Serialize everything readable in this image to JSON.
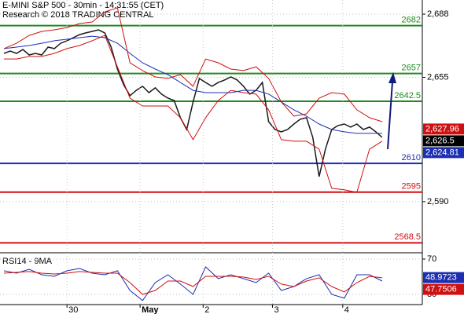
{
  "chart_data": [
    {
      "type": "line",
      "title": "E-MINI S&P 500 - 30min - 14:31:55 (CET)",
      "subtitle": "Research © 2018 TRADING CENTRAL",
      "xlim": [
        -0.625,
        66.375
      ],
      "ylim": [
        2563.3,
        2695.4
      ],
      "yticks": [
        {
          "value": 2688,
          "label": "2,688"
        },
        {
          "value": 2655,
          "label": "2,655"
        },
        {
          "value": 2590,
          "label": "2,590"
        }
      ],
      "grid": true,
      "series": [
        {
          "color": "#1a1a1a",
          "step": 1,
          "values": [
            2667.5,
            2668.7,
            2667.5,
            2669.5,
            2666.7,
            2667.5,
            2666.7,
            2670.8,
            2670,
            2672.8,
            2674.1,
            2675.7,
            2677.3,
            2678.2,
            2679,
            2679.8,
            2678.2,
            2670.8,
            2659.3,
            2651.1,
            2645.4,
            2648.2,
            2650.3,
            2647,
            2649.5,
            2646.2,
            2644.1,
            2642.9,
            2633.9,
            2627.7,
            2642.1,
            2654.4,
            2652.3,
            2650.3,
            2652.3,
            2653.6,
            2655.2,
            2653.6,
            2650.3,
            2646.2,
            2648.2,
            2652.3,
            2631.8,
            2627.7,
            2626.5,
            2627.7,
            2630.6,
            2633.1,
            2633.9,
            2623.6,
            2603.1,
            2617.5,
            2627.7,
            2629.8,
            2630.6,
            2629,
            2630.6,
            2627.7,
            2629,
            2626.5,
            2623.6
          ]
        },
        {
          "color": "#1c2fb0",
          "step": 2,
          "values": [
            2670,
            2670.8,
            2671.6,
            2672.8,
            2674.1,
            2674.9,
            2675.7,
            2676.5,
            2675.7,
            2672.8,
            2667.5,
            2662.6,
            2659.3,
            2656.4,
            2652.3,
            2648.2,
            2647,
            2647,
            2647,
            2648.2,
            2648.2,
            2646.2,
            2642.1,
            2638,
            2634.7,
            2630.6,
            2627.7,
            2626.5,
            2625.7,
            2625.7,
            2625.7
          ]
        },
        {
          "color": "#d01010",
          "step": 2,
          "values": [
            2670,
            2672.8,
            2676.9,
            2679,
            2679.8,
            2681,
            2683.1,
            2683.9,
            2689.2,
            2691.3,
            2662.6,
            2658.5,
            2655.2,
            2654.4,
            2656.4,
            2650.3,
            2664.6,
            2662.6,
            2659.3,
            2658.5,
            2660.5,
            2654.4,
            2642.1,
            2634.7,
            2635.9,
            2644.1,
            2647,
            2646.2,
            2638,
            2633.9,
            2631.8
          ]
        },
        {
          "color": "#d01010",
          "step": 2,
          "values": [
            2664.6,
            2664.6,
            2665.9,
            2665.9,
            2667.5,
            2670,
            2671.6,
            2674.1,
            2676.9,
            2660.5,
            2644.1,
            2640,
            2640,
            2640,
            2633.9,
            2622.4,
            2633.9,
            2642.9,
            2648.2,
            2647,
            2646.2,
            2638,
            2622.4,
            2621.6,
            2621.6,
            2617.5,
            2597,
            2596.2,
            2594.9,
            2617.5,
            2621.6
          ]
        }
      ],
      "levels": [
        {
          "value": 2682,
          "color": "#1f8a1f"
        },
        {
          "value": 2657,
          "color": "#1f8a1f"
        },
        {
          "value": 2642.5,
          "color": "#1f8a1f"
        },
        {
          "value": 2610,
          "color": "#1c2fb0"
        },
        {
          "value": 2595,
          "color": "#d01010"
        },
        {
          "value": 2568.5,
          "color": "#d01010"
        }
      ],
      "price_tags": [
        {
          "value": 2627.96,
          "label": "2,627.96",
          "color": "#d01010"
        },
        {
          "value": 2626.5,
          "label": "2,626.5",
          "color": "#000000"
        },
        {
          "value": 2624.81,
          "label": "2,624.81",
          "color": "#1c2fb0"
        }
      ]
    },
    {
      "type": "line",
      "title": "RSI14 - 9MA",
      "xlim": [
        -0.625,
        66.375
      ],
      "ylim": [
        18.4,
        77.1
      ],
      "yticks": [
        70,
        30
      ],
      "xticks": [
        {
          "value": 10,
          "label": "30"
        },
        {
          "value": 21.6,
          "label": "May"
        },
        {
          "value": 31.6,
          "label": "2"
        },
        {
          "value": 42.6,
          "label": "3"
        },
        {
          "value": 53.75,
          "label": "4"
        }
      ],
      "series": [
        {
          "color": "#1c2fb0",
          "step": 2,
          "values": [
            56.7,
            54,
            58.4,
            52.2,
            50.4,
            56.7,
            59.3,
            54,
            52.2,
            56.7,
            34.4,
            22.9,
            43.3,
            52.2,
            41.6,
            30,
            61.1,
            47.8,
            52.2,
            47.8,
            43.3,
            54,
            34.4,
            38.9,
            47.8,
            52.2,
            30,
            25.6,
            52.2,
            52.2,
            45.1
          ]
        },
        {
          "color": "#d01010",
          "step": 2,
          "values": [
            54,
            54.9,
            55.8,
            54,
            53.1,
            54,
            55.8,
            54.9,
            54,
            54,
            43.3,
            30,
            34.4,
            45.1,
            45.1,
            38.9,
            50.4,
            50.4,
            50.4,
            49.6,
            46.9,
            50.4,
            41.6,
            38.9,
            45.1,
            48.7,
            38.9,
            32.7,
            43.3,
            50.4,
            48.7
          ]
        }
      ],
      "price_tags": [
        {
          "value": 48.9723,
          "label": "48.9723",
          "color": "#1c2fb0"
        },
        {
          "value": 47.7506,
          "label": "47.7506",
          "color": "#d01010"
        }
      ]
    }
  ]
}
